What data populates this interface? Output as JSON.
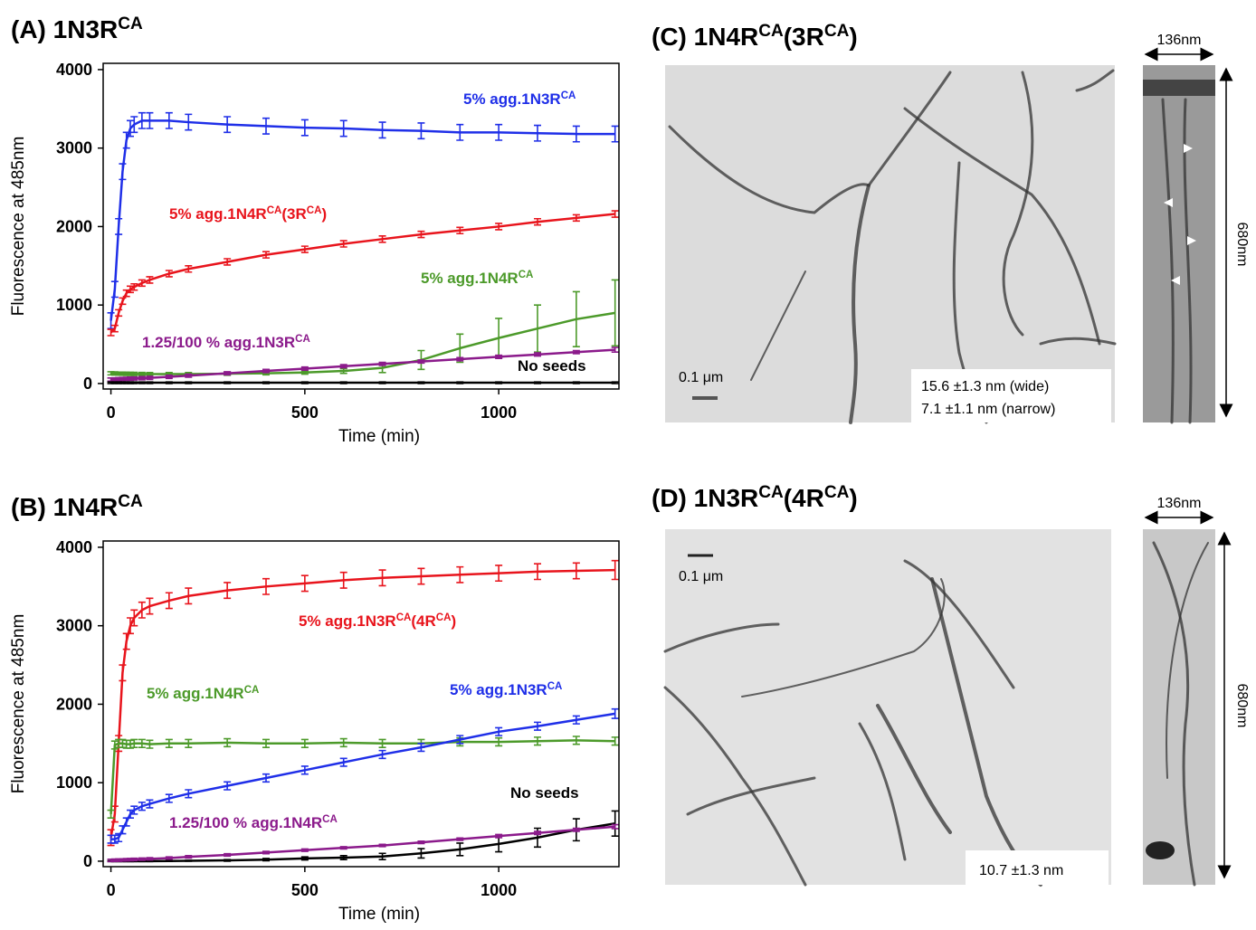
{
  "chart_data": [
    {
      "type": "line",
      "title": [
        {
          "text": "(A) 1N3R"
        },
        {
          "sup": "CA"
        }
      ],
      "x_label": "Time (min)",
      "y_label": "Fluorescence at 485nm",
      "xlim": [
        -20,
        1310
      ],
      "ylim": [
        -70,
        4080
      ],
      "xticks": [
        0,
        500,
        1000
      ],
      "yticks": [
        0,
        1000,
        2000,
        3000,
        4000
      ],
      "x": [
        0,
        10,
        20,
        30,
        40,
        50,
        60,
        80,
        100,
        150,
        200,
        300,
        400,
        500,
        600,
        700,
        800,
        900,
        1000,
        1100,
        1200,
        1300
      ],
      "series": [
        {
          "name": [
            {
              "text": "5% agg.1N3R"
            },
            {
              "sup": "CA"
            }
          ],
          "color": "#1f2fe8",
          "values": [
            800,
            1200,
            2000,
            2700,
            3100,
            3250,
            3300,
            3350,
            3350,
            3350,
            3330,
            3300,
            3280,
            3260,
            3250,
            3230,
            3220,
            3200,
            3200,
            3190,
            3180,
            3180
          ],
          "errors": [
            100,
            100,
            100,
            100,
            100,
            100,
            100,
            100,
            100,
            100,
            100,
            100,
            100,
            100,
            100,
            100,
            100,
            100,
            100,
            100,
            100,
            100
          ]
        },
        {
          "name": [
            {
              "text": "5% agg.1N4R"
            },
            {
              "sup": "CA"
            },
            {
              "text": "(3R"
            },
            {
              "sup": "CA"
            },
            {
              "text": ")"
            }
          ],
          "color": "#e8141c",
          "values": [
            650,
            700,
            900,
            1050,
            1150,
            1200,
            1230,
            1280,
            1320,
            1400,
            1460,
            1550,
            1640,
            1710,
            1780,
            1840,
            1900,
            1950,
            2000,
            2060,
            2110,
            2160
          ],
          "errors": [
            40,
            40,
            40,
            40,
            40,
            40,
            40,
            40,
            40,
            40,
            40,
            40,
            40,
            40,
            40,
            40,
            40,
            40,
            40,
            40,
            40,
            40
          ]
        },
        {
          "name": [
            {
              "text": "5% agg.1N4R"
            },
            {
              "sup": "CA"
            }
          ],
          "color": "#4c9a2a",
          "values": [
            130,
            128,
            126,
            125,
            124,
            123,
            122,
            121,
            120,
            120,
            120,
            125,
            130,
            140,
            160,
            200,
            300,
            450,
            580,
            700,
            820,
            900
          ],
          "errors": [
            20,
            20,
            20,
            20,
            20,
            20,
            20,
            20,
            20,
            20,
            20,
            20,
            20,
            20,
            30,
            60,
            120,
            180,
            250,
            300,
            350,
            420
          ]
        },
        {
          "name": [
            {
              "text": "1.25/100 % agg.1N3R"
            },
            {
              "sup": "CA"
            }
          ],
          "color": "#8b1a8b",
          "values": [
            50,
            52,
            55,
            58,
            60,
            62,
            64,
            68,
            72,
            85,
            100,
            130,
            160,
            190,
            220,
            250,
            280,
            310,
            340,
            370,
            400,
            430
          ],
          "errors": [
            20,
            20,
            20,
            20,
            20,
            20,
            20,
            20,
            20,
            20,
            20,
            20,
            20,
            20,
            20,
            20,
            20,
            20,
            20,
            20,
            20,
            30
          ]
        },
        {
          "name": [
            {
              "text": "No seeds"
            }
          ],
          "color": "#000000",
          "values": [
            10,
            10,
            10,
            10,
            10,
            10,
            10,
            10,
            10,
            10,
            10,
            10,
            10,
            10,
            10,
            10,
            10,
            10,
            10,
            10,
            10,
            10
          ],
          "errors": [
            10,
            10,
            10,
            10,
            10,
            10,
            10,
            10,
            10,
            10,
            10,
            10,
            10,
            10,
            10,
            10,
            10,
            10,
            10,
            10,
            10,
            10
          ]
        }
      ]
    },
    {
      "type": "line",
      "title": [
        {
          "text": "(B) 1N4R"
        },
        {
          "sup": "CA"
        }
      ],
      "x_label": "Time (min)",
      "y_label": "Fluorescence at 485nm",
      "xlim": [
        -20,
        1310
      ],
      "ylim": [
        -70,
        4080
      ],
      "xticks": [
        0,
        500,
        1000
      ],
      "yticks": [
        0,
        1000,
        2000,
        3000,
        4000
      ],
      "x": [
        0,
        10,
        20,
        30,
        40,
        50,
        60,
        80,
        100,
        150,
        200,
        300,
        400,
        500,
        600,
        700,
        800,
        900,
        1000,
        1100,
        1200,
        1300
      ],
      "series": [
        {
          "name": [
            {
              "text": "5% agg.1N3R"
            },
            {
              "sup": "CA"
            },
            {
              "text": "(4R"
            },
            {
              "sup": "CA"
            },
            {
              "text": ")"
            }
          ],
          "color": "#e8141c",
          "values": [
            300,
            600,
            1500,
            2400,
            2800,
            3000,
            3100,
            3200,
            3250,
            3320,
            3380,
            3450,
            3500,
            3540,
            3580,
            3610,
            3630,
            3650,
            3670,
            3690,
            3700,
            3710
          ],
          "errors": [
            100,
            100,
            100,
            100,
            100,
            100,
            100,
            100,
            100,
            100,
            100,
            100,
            100,
            100,
            100,
            100,
            100,
            100,
            100,
            100,
            100,
            120
          ]
        },
        {
          "name": [
            {
              "text": "5% agg.1N4R"
            },
            {
              "sup": "CA"
            }
          ],
          "color": "#4c9a2a",
          "values": [
            600,
            1480,
            1500,
            1500,
            1490,
            1490,
            1500,
            1500,
            1490,
            1500,
            1500,
            1510,
            1500,
            1500,
            1510,
            1500,
            1500,
            1520,
            1520,
            1530,
            1540,
            1530
          ],
          "errors": [
            50,
            50,
            50,
            50,
            50,
            50,
            50,
            50,
            50,
            50,
            50,
            50,
            50,
            50,
            50,
            50,
            50,
            50,
            50,
            50,
            50,
            50
          ]
        },
        {
          "name": [
            {
              "text": "5% agg.1N3R"
            },
            {
              "sup": "CA"
            }
          ],
          "color": "#1f2fe8",
          "values": [
            280,
            280,
            300,
            400,
            500,
            600,
            650,
            700,
            730,
            800,
            860,
            960,
            1060,
            1160,
            1260,
            1360,
            1450,
            1550,
            1650,
            1720,
            1800,
            1880
          ],
          "errors": [
            50,
            50,
            50,
            50,
            50,
            50,
            50,
            50,
            50,
            50,
            50,
            50,
            50,
            50,
            50,
            50,
            50,
            50,
            50,
            50,
            50,
            60
          ]
        },
        {
          "name": [
            {
              "text": "No seeds"
            }
          ],
          "color": "#000000",
          "values": [
            0,
            0,
            0,
            0,
            0,
            0,
            0,
            0,
            0,
            2,
            5,
            10,
            20,
            35,
            45,
            60,
            100,
            150,
            220,
            300,
            400,
            480
          ],
          "errors": [
            5,
            5,
            5,
            5,
            5,
            5,
            5,
            5,
            5,
            5,
            5,
            10,
            15,
            20,
            25,
            40,
            60,
            80,
            100,
            120,
            140,
            160
          ]
        },
        {
          "name": [
            {
              "text": "1.25/100 % agg.1N4R"
            },
            {
              "sup": "CA"
            }
          ],
          "color": "#8b1a8b",
          "values": [
            10,
            12,
            14,
            16,
            18,
            20,
            22,
            26,
            30,
            40,
            55,
            80,
            110,
            140,
            170,
            200,
            240,
            280,
            320,
            360,
            400,
            440
          ],
          "errors": [
            15,
            15,
            15,
            15,
            15,
            15,
            15,
            15,
            15,
            15,
            15,
            15,
            15,
            15,
            15,
            15,
            15,
            15,
            20,
            20,
            20,
            25
          ]
        }
      ]
    }
  ],
  "micrographs": [
    {
      "title": [
        {
          "text": "(C) 1N4R"
        },
        {
          "sup": "CA"
        },
        {
          "text": "(3R"
        },
        {
          "sup": "CA"
        },
        {
          "text": ")"
        }
      ],
      "scale_bar": "0.1 μm",
      "measurements": [
        "15.6 ±1.3 nm (wide)",
        "7.1 ±1.1 nm (narrow)"
      ],
      "width_label": "136nm",
      "height_label": "680nm"
    },
    {
      "title": [
        {
          "text": "(D) 1N3R"
        },
        {
          "sup": "CA"
        },
        {
          "text": "(4R"
        },
        {
          "sup": "CA"
        },
        {
          "text": ")"
        }
      ],
      "scale_bar": "0.1 μm",
      "measurements": [
        "10.7 ±1.3 nm"
      ],
      "width_label": "136nm",
      "height_label": "680nm"
    }
  ]
}
